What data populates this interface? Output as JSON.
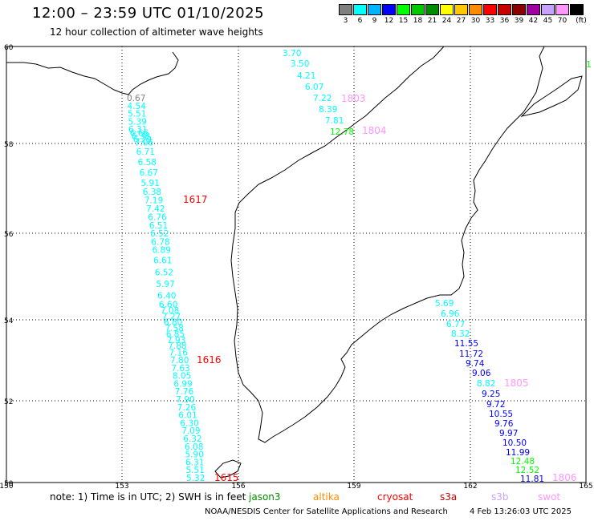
{
  "header": {
    "title": "12:00 – 23:59 UTC 01/10/2025",
    "subtitle": "12 hour collection of altimeter wave heights"
  },
  "legend": {
    "unit": "(ft)",
    "items": [
      {
        "label": "3",
        "color": "#808080"
      },
      {
        "label": "6",
        "color": "#00ffff"
      },
      {
        "label": "9",
        "color": "#00b4ff"
      },
      {
        "label": "12",
        "color": "#0000ff"
      },
      {
        "label": "15",
        "color": "#00ff00"
      },
      {
        "label": "18",
        "color": "#00c800"
      },
      {
        "label": "21",
        "color": "#008c00"
      },
      {
        "label": "24",
        "color": "#ffff00"
      },
      {
        "label": "27",
        "color": "#ffc800"
      },
      {
        "label": "30",
        "color": "#ff8c00"
      },
      {
        "label": "33",
        "color": "#ff0000"
      },
      {
        "label": "36",
        "color": "#c80000"
      },
      {
        "label": "39",
        "color": "#8c0000"
      },
      {
        "label": "42",
        "color": "#a000a0"
      },
      {
        "label": "45",
        "color": "#c8a0ff"
      },
      {
        "label": "70",
        "color": "#ff96ff"
      },
      {
        "label": "",
        "color": "#000000"
      }
    ]
  },
  "axes": {
    "x_ticks": [
      "150",
      "153",
      "156",
      "159",
      "162",
      "165"
    ],
    "y_ticks": [
      "50",
      "52",
      "54",
      "56",
      "58",
      "60"
    ]
  },
  "passes": [
    {
      "label": "1617",
      "color": "#ff0000"
    },
    {
      "label": "1616",
      "color": "#ff0000"
    },
    {
      "label": "1615",
      "color": "#ff0000"
    },
    {
      "label": "1803",
      "color": "#ff96ff"
    },
    {
      "label": "1804",
      "color": "#ff96ff"
    },
    {
      "label": "1805",
      "color": "#ff96ff"
    },
    {
      "label": "1806",
      "color": "#ff96ff"
    }
  ],
  "tracks": {
    "west": {
      "values": [
        "0.67",
        "4.54",
        "5.51",
        "5.39",
        "6.31",
        "6.66",
        "6.38",
        "6.29",
        "7.06",
        "6.71",
        "6.58",
        "6.67",
        "5.91",
        "6.38",
        "7.19",
        "7.42",
        "6.76",
        "6.51",
        "6.52",
        "6.78",
        "6.89",
        "6.61",
        "6.52",
        "5.97",
        "6.40",
        "6.60",
        "7.08",
        "7.27",
        "6.80",
        "7.58",
        "6.85",
        "7.93",
        "7.88",
        "7.16",
        "7.80",
        "7.63",
        "8.05",
        "6.99",
        "7.76",
        "7.90",
        "7.26",
        "6.01",
        "6.30",
        "7.09",
        "6.32",
        "6.08",
        "5.90",
        "6.31",
        "5.51",
        "5.32"
      ],
      "colors": [
        "#808080",
        "#00ffff",
        "#00ffff",
        "#00ffff",
        "#00ffff",
        "#00ffff",
        "#00ffff",
        "#00ffff",
        "#00ffff",
        "#00ffff",
        "#00ffff",
        "#00ffff",
        "#00ffff",
        "#00ffff",
        "#00ffff",
        "#00ffff",
        "#00ffff",
        "#00ffff",
        "#00ffff",
        "#00ffff",
        "#00ffff",
        "#00ffff",
        "#00ffff",
        "#00ffff",
        "#00ffff",
        "#00ffff",
        "#00ffff",
        "#00ffff",
        "#00ffff",
        "#00ffff",
        "#00ffff",
        "#00ffff",
        "#00ffff",
        "#00ffff",
        "#00ffff",
        "#00ffff",
        "#00ffff",
        "#00ffff",
        "#00ffff",
        "#00ffff",
        "#00ffff",
        "#00ffff",
        "#00ffff",
        "#00ffff",
        "#00ffff",
        "#00ffff",
        "#00ffff",
        "#00ffff",
        "#00ffff",
        "#00ffff"
      ]
    },
    "north": {
      "values": [
        "3.70",
        "3.50",
        "4.21",
        "6.07",
        "7.22",
        "8.39",
        "7.81",
        "12.78"
      ],
      "colors": [
        "#00ffff",
        "#00ffff",
        "#00ffff",
        "#00ffff",
        "#00ffff",
        "#00ffff",
        "#00ffff",
        "#00ff00"
      ]
    },
    "east": {
      "values": [
        "5.69",
        "6.96",
        "6.77",
        "8.32",
        "11.55",
        "11.72",
        "9.74",
        "9.06",
        "8.82",
        "9.25",
        "9.72",
        "10.55",
        "9.76",
        "9.97",
        "10.50",
        "11.99",
        "12.48",
        "12.52",
        "11.81"
      ],
      "colors": [
        "#00ffff",
        "#00ffff",
        "#00ffff",
        "#00ffff",
        "#0000ff",
        "#0000ff",
        "#0000ff",
        "#0000ff",
        "#00ffff",
        "#0000ff",
        "#0000ff",
        "#0000ff",
        "#0000ff",
        "#0000ff",
        "#0000ff",
        "#0000ff",
        "#00ff00",
        "#00ff00",
        "#0000ff"
      ]
    },
    "edge": {
      "value": "1",
      "color": "#00ff00"
    }
  },
  "footer": {
    "note": "note:  1) Time is in UTC;  2) SWH is in feet",
    "satellites": [
      {
        "name": "jason3",
        "color": "#008c00"
      },
      {
        "name": "altika",
        "color": "#ff8c00"
      },
      {
        "name": "cryosat",
        "color": "#ff0000"
      },
      {
        "name": "s3a",
        "color": "#c80000"
      },
      {
        "name": "s3b",
        "color": "#c8a0ff"
      },
      {
        "name": "swot",
        "color": "#ff96ff"
      }
    ],
    "credit": "NOAA/NESDIS Center for Satellite Applications and Research",
    "generated": "4 Feb 13:26:03 UTC 2025"
  }
}
